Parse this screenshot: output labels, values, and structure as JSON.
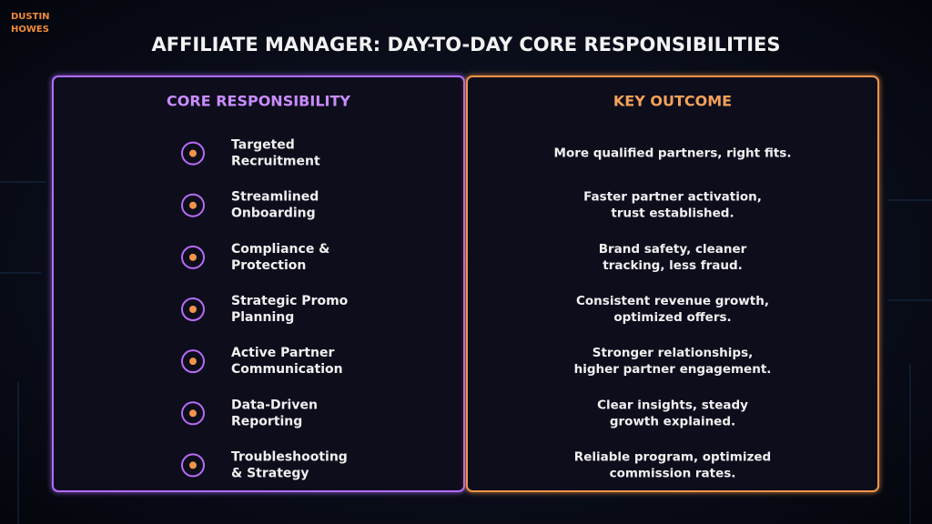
{
  "logo": {
    "lines": [
      "DUSTIN",
      "HOWES"
    ]
  },
  "title": "AFFILIATE MANAGER: DAY-TO-DAY CORE RESPONSIBILITIES",
  "table": {
    "headers": [
      "CORE RESPONSIBILITY",
      "KEY OUTCOME"
    ],
    "rows": [
      {
        "responsibility": [
          "Targeted",
          "Recruitment"
        ],
        "outcome": [
          "More qualified partners, right fits."
        ]
      },
      {
        "responsibility": [
          "Streamlined",
          "Onboarding"
        ],
        "outcome": [
          "Faster partner activation,",
          "trust established."
        ]
      },
      {
        "responsibility": [
          "Compliance &",
          "Protection"
        ],
        "outcome": [
          "Brand safety, cleaner",
          "tracking, less fraud."
        ]
      },
      {
        "responsibility": [
          "Strategic Promo",
          "Planning"
        ],
        "outcome": [
          "Consistent revenue growth,",
          "optimized offers."
        ]
      },
      {
        "responsibility": [
          "Active Partner",
          "Communication"
        ],
        "outcome": [
          "Stronger relationships,",
          "higher partner engagement."
        ]
      },
      {
        "responsibility": [
          "Data-Driven",
          "Reporting"
        ],
        "outcome": [
          "Clear insights, steady",
          "growth explained."
        ]
      },
      {
        "responsibility": [
          "Troubleshooting",
          "& Strategy"
        ],
        "outcome": [
          "Reliable program, optimized",
          "commission rates."
        ]
      }
    ]
  }
}
